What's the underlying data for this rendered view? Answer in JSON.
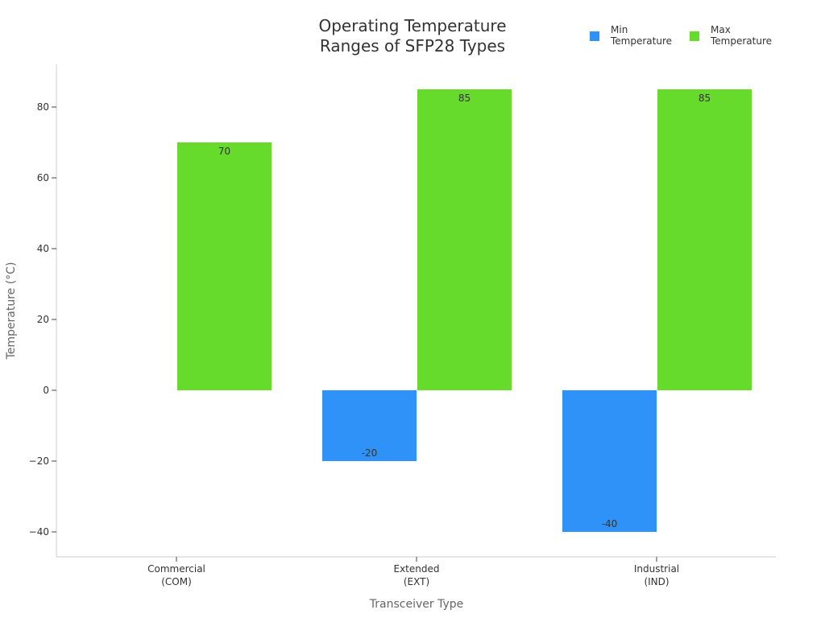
{
  "chart_data": {
    "type": "bar",
    "title_line1": "Operating Temperature",
    "title_line2": "Ranges of SFP28 Types",
    "xlabel": "Transceiver Type",
    "ylabel": "Temperature (°C)",
    "categories": [
      [
        "Commercial",
        "(COM)"
      ],
      [
        "Extended",
        "(EXT)"
      ],
      [
        "Industrial",
        "(IND)"
      ]
    ],
    "series": [
      {
        "name": [
          "Min",
          "Temperature"
        ],
        "color": "#2f92f8",
        "values": [
          0,
          -20,
          -40
        ],
        "labels": [
          "",
          "-20",
          "-40"
        ]
      },
      {
        "name": [
          "Max",
          "Temperature"
        ],
        "color": "#66db2b",
        "values": [
          70,
          85,
          85
        ],
        "labels": [
          "70",
          "85",
          "85"
        ]
      }
    ],
    "yticks": [
      -40,
      -20,
      0,
      20,
      40,
      60,
      80
    ],
    "ytick_labels": [
      "−40",
      "−20",
      "0",
      "20",
      "40",
      "60",
      "80"
    ],
    "ylim": [
      -47,
      92
    ],
    "grid": false,
    "legend_position": "top-right"
  }
}
